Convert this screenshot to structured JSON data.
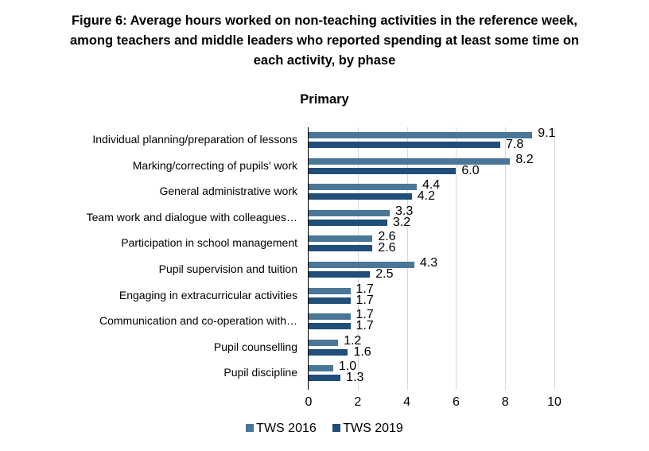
{
  "figure": {
    "title_line1": "Figure 6:  Average hours worked on non-teaching activities in the reference week,",
    "title_line2": "among teachers and middle leaders who reported spending at least some time on",
    "title_line3": "each activity, by phase",
    "subtitle": "Primary"
  },
  "legend": [
    {
      "label": "TWS 2016",
      "color": "#4a7797"
    },
    {
      "label": "TWS 2019",
      "color": "#1f4e79"
    }
  ],
  "axis": {
    "ticks": [
      "0",
      "2",
      "4",
      "6",
      "8",
      "10"
    ]
  },
  "chart_data": {
    "type": "bar",
    "orientation": "horizontal",
    "title": "Figure 6: Average hours worked on non-teaching activities in the reference week, among teachers and middle leaders who reported spending at least some time on each activity, by phase",
    "subtitle": "Primary",
    "xlabel": "",
    "ylabel": "",
    "xlim": [
      0,
      10
    ],
    "x_ticks": [
      0,
      2,
      4,
      6,
      8,
      10
    ],
    "grid": true,
    "legend_position": "bottom",
    "categories": [
      "Individual planning/preparation of lessons",
      "Marking/correcting of pupils' work",
      "General administrative work",
      "Team work and dialogue with colleagues…",
      "Participation in school management",
      "Pupil supervision and tuition",
      "Engaging in extracurricular activities",
      "Communication and co-operation with…",
      "Pupil counselling",
      "Pupil discipline"
    ],
    "series": [
      {
        "name": "TWS 2016",
        "color": "#4a7797",
        "values": [
          9.1,
          8.2,
          4.4,
          3.3,
          2.6,
          4.3,
          1.7,
          1.7,
          1.2,
          1.0
        ],
        "labels": [
          "9.1",
          "8.2",
          "4.4",
          "3.3",
          "2.6",
          "4.3",
          "1.7",
          "1.7",
          "1.2",
          "1.0"
        ]
      },
      {
        "name": "TWS 2019",
        "color": "#1f4e79",
        "values": [
          7.8,
          6.0,
          4.2,
          3.2,
          2.6,
          2.5,
          1.7,
          1.7,
          1.6,
          1.3
        ],
        "labels": [
          "7.8",
          "6.0",
          "4.2",
          "3.2",
          "2.6",
          "2.5",
          "1.7",
          "1.7",
          "1.6",
          "1.3"
        ]
      }
    ]
  }
}
